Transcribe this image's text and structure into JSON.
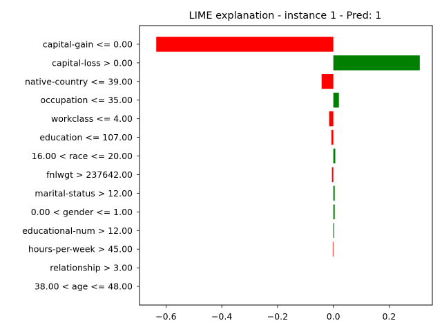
{
  "chart_data": {
    "type": "bar",
    "orientation": "horizontal",
    "title": "LIME explanation - instance 1 - Pred: 1",
    "xlabel": "",
    "ylabel": "",
    "xlim": [
      -0.695,
      0.355
    ],
    "xticks": [
      -0.6,
      -0.4,
      -0.2,
      0.0,
      0.2
    ],
    "xtick_labels": [
      "−0.6",
      "−0.4",
      "−0.2",
      "0.0",
      "0.2"
    ],
    "grid": false,
    "legend": "none",
    "colors": {
      "positive": "#008000",
      "negative": "#ff0000"
    },
    "categories": [
      "capital-gain <= 0.00",
      "capital-loss > 0.00",
      "native-country <= 39.00",
      "occupation <= 35.00",
      "workclass <= 4.00",
      "education <= 107.00",
      "16.00 < race <= 20.00",
      "fnlwgt > 237642.00",
      "marital-status > 12.00",
      "0.00 < gender <= 1.00",
      "educational-num > 12.00",
      "hours-per-week > 45.00",
      "relationship > 3.00",
      "38.00 < age <= 48.00"
    ],
    "values": [
      -0.635,
      0.31,
      -0.042,
      0.02,
      -0.015,
      -0.007,
      0.007,
      -0.005,
      0.005,
      0.005,
      0.003,
      -0.002,
      0.0,
      0.0
    ]
  }
}
